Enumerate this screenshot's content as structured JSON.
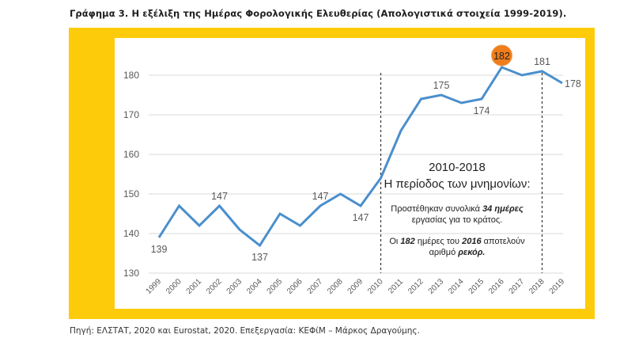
{
  "title": "Γράφημα 3. Η εξέλιξη της Ημέρας Φορολογικής Ελευθερίας (Απολογιστικά στοιχεία 1999-2019).",
  "source": "Πηγή: ΕΛΣΤΑΤ, 2020 και Eurostat, 2020. Επεξεργασία: ΚΕΦίΜ – Μάρκος Δραγούμης.",
  "colors": {
    "frame": "#fecb0a",
    "line": "#4a8fcd",
    "highlight": "#f07d1a",
    "grid": "#d9d9d9",
    "axis_text": "#595959"
  },
  "annotation": {
    "years": "2010-2018",
    "heading": "Η περίοδος των μνημονίων:",
    "p1_a": "Προστέθηκαν συνολικά ",
    "p1_b": "34 ημέρες",
    "p1_c": " εργασίας για το κράτος.",
    "p2_a": "Οι ",
    "p2_b": "182",
    "p2_c": " ημέρες του ",
    "p2_d": "2016",
    "p2_e": " αποτελούν αριθμό ",
    "p2_f": "ρεκόρ."
  },
  "chart_data": {
    "type": "line",
    "title": "Γράφημα 3. Η εξέλιξη της Ημέρας Φορολογικής Ελευθερίας (Απολογιστικά στοιχεία 1999-2019).",
    "xlabel": "",
    "ylabel": "",
    "categories": [
      "1999",
      "2000",
      "2001",
      "2002",
      "2003",
      "2004",
      "2005",
      "2006",
      "2007",
      "2008",
      "2009",
      "2010",
      "2011",
      "2012",
      "2013",
      "2014",
      "2015",
      "2016",
      "2017",
      "2018",
      "2019"
    ],
    "series": [
      {
        "name": "Ημέρα Φορολογικής Ελευθερίας",
        "values": [
          139,
          147,
          142,
          147,
          141,
          137,
          145,
          142,
          147,
          150,
          147,
          154,
          166,
          174,
          175,
          173,
          174,
          182,
          180,
          181,
          178
        ]
      }
    ],
    "ylim": [
      130,
      180
    ],
    "yticks": [
      130,
      140,
      150,
      160,
      170,
      180
    ],
    "grid": true,
    "legend": "none",
    "data_labels": [
      {
        "year": "1999",
        "value": "139",
        "pos": "below"
      },
      {
        "year": "2002",
        "value": "147",
        "pos": "above"
      },
      {
        "year": "2004",
        "value": "137",
        "pos": "below"
      },
      {
        "year": "2007",
        "value": "147",
        "pos": "above"
      },
      {
        "year": "2009",
        "value": "147",
        "pos": "below"
      },
      {
        "year": "2013",
        "value": "175",
        "pos": "above"
      },
      {
        "year": "2015",
        "value": "174",
        "pos": "below"
      },
      {
        "year": "2016",
        "value": "182",
        "pos": "highlight"
      },
      {
        "year": "2018",
        "value": "181",
        "pos": "above"
      },
      {
        "year": "2019",
        "value": "178",
        "pos": "right"
      }
    ],
    "reference_lines": [
      "2010",
      "2018"
    ]
  }
}
